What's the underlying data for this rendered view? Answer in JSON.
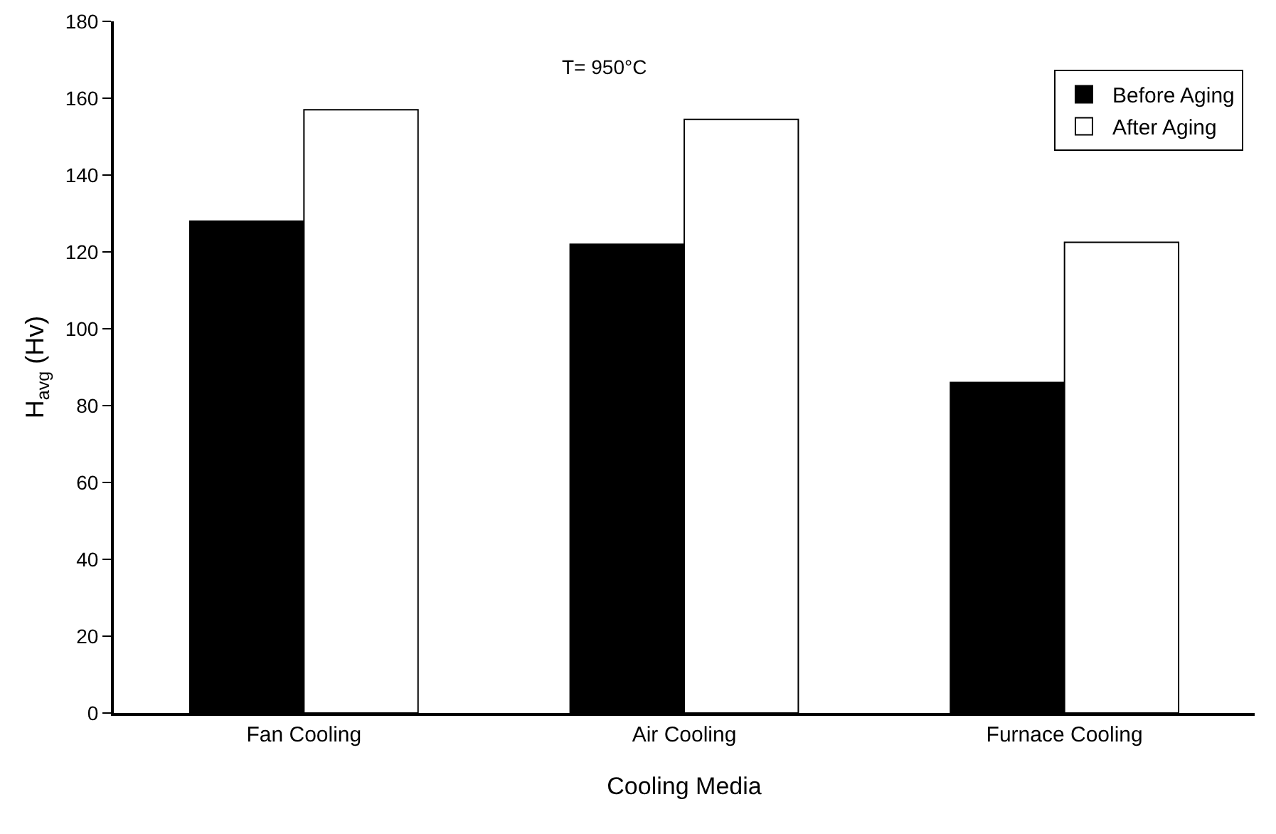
{
  "chart_data": {
    "type": "bar",
    "xlabel": "Cooling Media",
    "ylabel": "H$_{avg}$ (Hv)",
    "annotations": [
      "T= 950°C"
    ],
    "categories": [
      "Fan Cooling",
      "Air Cooling",
      "Furnace Cooling"
    ],
    "series": [
      {
        "name": "Before Aging",
        "color": "#000000",
        "values": [
          128,
          122,
          86
        ]
      },
      {
        "name": "After Aging",
        "color": "#ffffff",
        "values": [
          157,
          154.5,
          122.5
        ]
      }
    ],
    "ylim": [
      0,
      180
    ],
    "yticks": [
      0,
      20,
      40,
      60,
      80,
      100,
      120,
      140,
      160,
      180
    ],
    "grid": false,
    "legend": "top right"
  }
}
